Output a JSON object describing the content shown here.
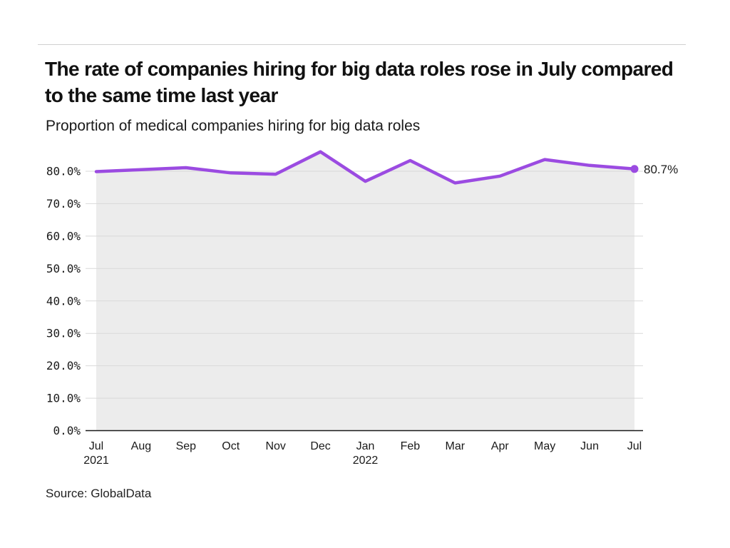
{
  "header": {
    "title": "The rate of companies hiring for big data roles rose in July compared to the same time last year",
    "subtitle": "Proportion of medical companies hiring for big data roles"
  },
  "footer": {
    "source": "Source: GlobalData"
  },
  "chart_data": {
    "type": "line",
    "title": "The rate of companies hiring for big data roles rose in July compared to the same time last year",
    "subtitle": "Proportion of medical companies hiring for big data roles",
    "series_name": "Proportion of medical companies hiring for big data roles",
    "categories": [
      "Jul",
      "Aug",
      "Sep",
      "Oct",
      "Nov",
      "Dec",
      "Jan",
      "Feb",
      "Mar",
      "Apr",
      "May",
      "Jun",
      "Jul"
    ],
    "year_labels": {
      "0": "2021",
      "6": "2022"
    },
    "values": [
      79.9,
      80.5,
      81.1,
      79.5,
      79.1,
      86.0,
      76.9,
      83.3,
      76.4,
      78.5,
      83.6,
      81.8,
      80.7
    ],
    "end_label": "80.7%",
    "y_tick_labels": [
      "0.0%",
      "10.0%",
      "20.0%",
      "30.0%",
      "40.0%",
      "50.0%",
      "60.0%",
      "70.0%",
      "80.0%"
    ],
    "y_tick_values": [
      0,
      10,
      20,
      30,
      40,
      50,
      60,
      70,
      80
    ],
    "ylim": [
      0,
      90
    ],
    "xlabel": "",
    "ylabel": "",
    "grid": true,
    "legend": false,
    "colors": {
      "line": "#9b4be1",
      "area": "#ececec",
      "grid": "#d9d9d9",
      "axis": "#1a1a1a",
      "text": "#1a1a1a"
    }
  }
}
